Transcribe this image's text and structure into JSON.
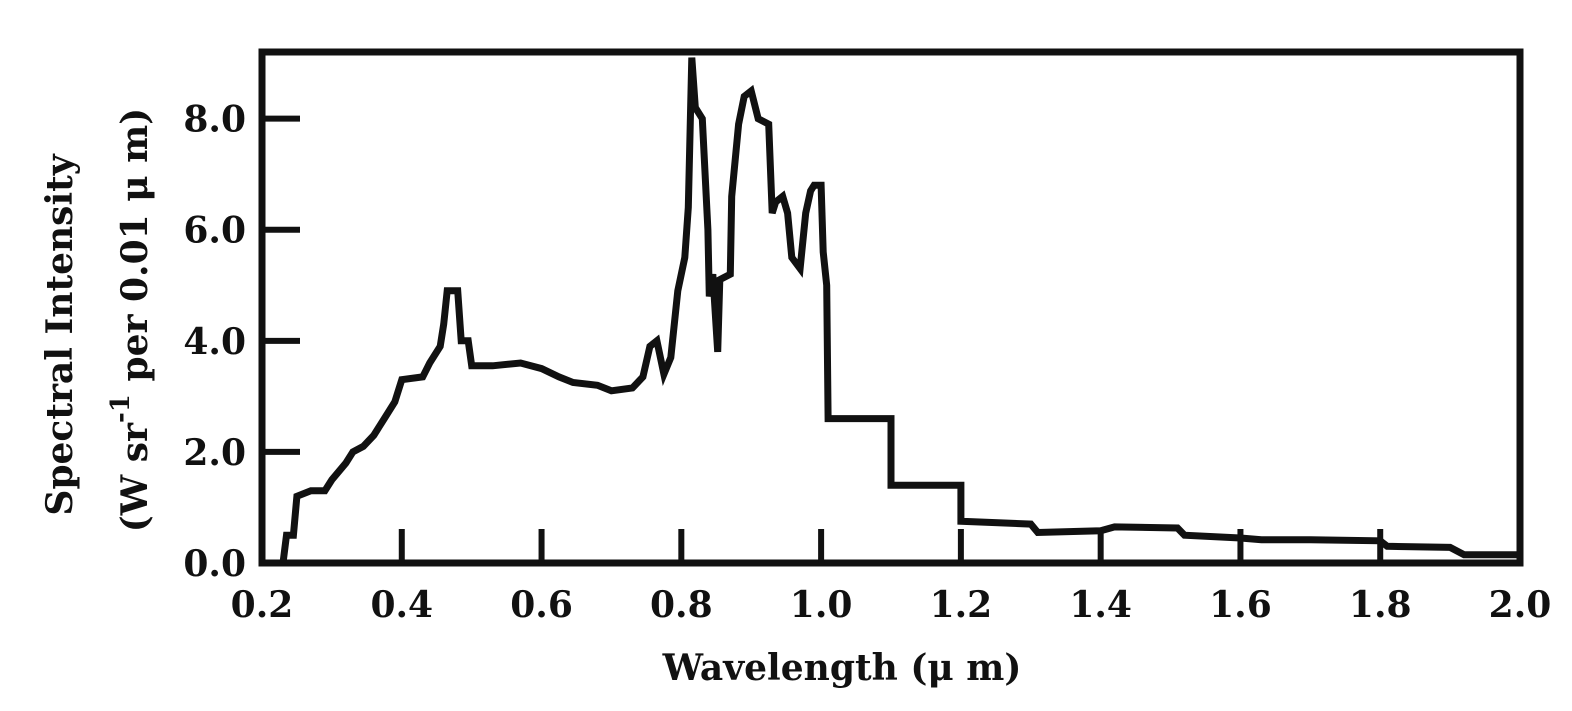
{
  "chart_data": {
    "type": "line",
    "xlabel": "Wavelength (μ m)",
    "ylabel_line1": "Spectral Intensity",
    "ylabel_line2_prefix": "(W sr",
    "ylabel_line2_sup": "-1",
    "ylabel_line2_suffix": " per 0.01 μ m)",
    "xlim": [
      0.2,
      2.0
    ],
    "ylim": [
      0,
      9.2
    ],
    "x_ticks": [
      0.2,
      0.4,
      0.6,
      0.8,
      1.0,
      1.2,
      1.4,
      1.6,
      1.8,
      2.0
    ],
    "x_tick_labels": [
      "0.2",
      "0.4",
      "0.6",
      "0.8",
      "1.0",
      "1.2",
      "1.4",
      "1.6",
      "1.8",
      "2.0"
    ],
    "y_ticks": [
      0,
      2,
      4,
      6,
      8
    ],
    "y_tick_labels": [
      "0.0",
      "2.0",
      "4.0",
      "6.0",
      "8.0"
    ],
    "grid": false,
    "line_color": "#111111",
    "series": [
      {
        "name": "",
        "points": [
          [
            0.23,
            0.0
          ],
          [
            0.235,
            0.5
          ],
          [
            0.245,
            0.5
          ],
          [
            0.25,
            1.2
          ],
          [
            0.27,
            1.3
          ],
          [
            0.29,
            1.3
          ],
          [
            0.3,
            1.5
          ],
          [
            0.32,
            1.8
          ],
          [
            0.33,
            2.0
          ],
          [
            0.345,
            2.1
          ],
          [
            0.36,
            2.3
          ],
          [
            0.375,
            2.6
          ],
          [
            0.39,
            2.9
          ],
          [
            0.4,
            3.3
          ],
          [
            0.43,
            3.35
          ],
          [
            0.44,
            3.6
          ],
          [
            0.455,
            3.9
          ],
          [
            0.46,
            4.3
          ],
          [
            0.465,
            4.9
          ],
          [
            0.48,
            4.9
          ],
          [
            0.485,
            4.0
          ],
          [
            0.495,
            4.0
          ],
          [
            0.5,
            3.55
          ],
          [
            0.53,
            3.55
          ],
          [
            0.57,
            3.6
          ],
          [
            0.6,
            3.5
          ],
          [
            0.625,
            3.35
          ],
          [
            0.645,
            3.25
          ],
          [
            0.68,
            3.2
          ],
          [
            0.7,
            3.1
          ],
          [
            0.73,
            3.15
          ],
          [
            0.745,
            3.35
          ],
          [
            0.755,
            3.9
          ],
          [
            0.765,
            4.0
          ],
          [
            0.775,
            3.4
          ],
          [
            0.785,
            3.7
          ],
          [
            0.795,
            4.9
          ],
          [
            0.805,
            5.5
          ],
          [
            0.81,
            6.4
          ],
          [
            0.815,
            9.1
          ],
          [
            0.82,
            8.2
          ],
          [
            0.83,
            8.0
          ],
          [
            0.838,
            6.0
          ],
          [
            0.84,
            4.8
          ],
          [
            0.845,
            5.2
          ],
          [
            0.852,
            3.8
          ],
          [
            0.855,
            5.1
          ],
          [
            0.87,
            5.2
          ],
          [
            0.872,
            6.6
          ],
          [
            0.882,
            7.9
          ],
          [
            0.89,
            8.4
          ],
          [
            0.9,
            8.5
          ],
          [
            0.91,
            8.0
          ],
          [
            0.925,
            7.9
          ],
          [
            0.93,
            6.3
          ],
          [
            0.935,
            6.5
          ],
          [
            0.945,
            6.6
          ],
          [
            0.952,
            6.3
          ],
          [
            0.958,
            5.5
          ],
          [
            0.97,
            5.3
          ],
          [
            0.978,
            6.3
          ],
          [
            0.985,
            6.7
          ],
          [
            0.99,
            6.8
          ],
          [
            1.0,
            6.8
          ],
          [
            1.003,
            5.6
          ],
          [
            1.008,
            5.0
          ],
          [
            1.01,
            2.6
          ],
          [
            1.1,
            2.6
          ],
          [
            1.1,
            1.4
          ],
          [
            1.2,
            1.4
          ],
          [
            1.2,
            0.75
          ],
          [
            1.3,
            0.7
          ],
          [
            1.31,
            0.55
          ],
          [
            1.4,
            0.58
          ],
          [
            1.42,
            0.65
          ],
          [
            1.51,
            0.63
          ],
          [
            1.52,
            0.5
          ],
          [
            1.6,
            0.45
          ],
          [
            1.63,
            0.42
          ],
          [
            1.7,
            0.42
          ],
          [
            1.8,
            0.4
          ],
          [
            1.81,
            0.3
          ],
          [
            1.9,
            0.28
          ],
          [
            1.92,
            0.15
          ],
          [
            2.0,
            0.15
          ]
        ]
      }
    ]
  }
}
